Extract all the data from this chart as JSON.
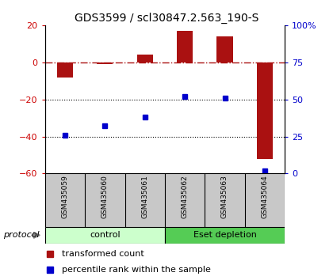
{
  "title": "GDS3599 / scl30847.2.563_190-S",
  "samples": [
    "GSM435059",
    "GSM435060",
    "GSM435061",
    "GSM435062",
    "GSM435063",
    "GSM435064"
  ],
  "red_values": [
    -8,
    -1,
    4,
    17,
    14,
    -52
  ],
  "blue_values": [
    26,
    32,
    38,
    52,
    51,
    2
  ],
  "ylim_left": [
    -60,
    20
  ],
  "ylim_right": [
    0,
    100
  ],
  "yticks_left": [
    -60,
    -40,
    -20,
    0,
    20
  ],
  "yticks_right": [
    0,
    25,
    50,
    75,
    100
  ],
  "ytick_labels_right": [
    "0",
    "25",
    "50",
    "75",
    "100%"
  ],
  "dotted_lines": [
    -20,
    -40
  ],
  "bar_color": "#AA1111",
  "dot_color": "#0000CC",
  "bar_width": 0.4,
  "protocol_labels": [
    "control",
    "Eset depletion"
  ],
  "protocol_colors": [
    "#ccffcc",
    "#55cc55"
  ],
  "legend_red": "transformed count",
  "legend_blue": "percentile rank within the sample",
  "protocol_text": "protocol",
  "sample_bg": "#c8c8c8",
  "label_fontsize": 7.5,
  "title_fontsize": 10
}
